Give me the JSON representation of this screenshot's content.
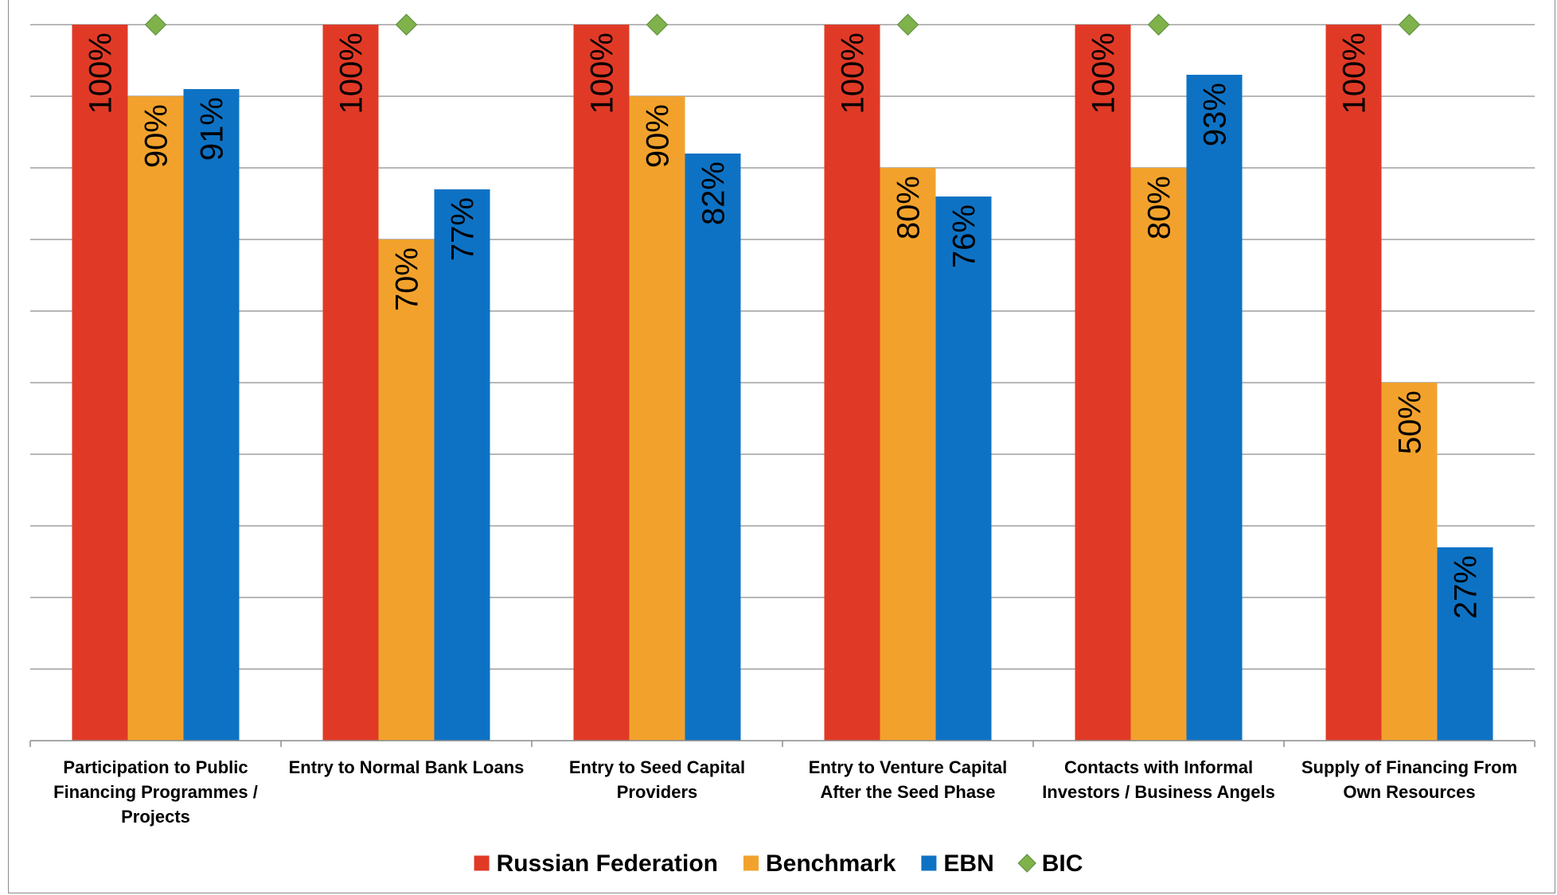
{
  "chart_data": {
    "type": "bar",
    "categories": [
      [
        "Participation to Public",
        "Financing Programmes /",
        "Projects"
      ],
      [
        "Entry to Normal Bank Loans"
      ],
      [
        "Entry to Seed Capital",
        "Providers"
      ],
      [
        "Entry to Venture Capital",
        "After the Seed Phase"
      ],
      [
        "Contacts with Informal",
        "Investors / Business Angels"
      ],
      [
        "Supply of Financing From",
        "Own Resources"
      ]
    ],
    "series": [
      {
        "name": "Russian Federation",
        "type": "bar",
        "color": "#e03a26",
        "values": [
          100,
          100,
          100,
          100,
          100,
          100
        ],
        "labels": [
          "100%",
          "100%",
          "100%",
          "100%",
          "100%",
          "100%"
        ]
      },
      {
        "name": "Benchmark",
        "type": "bar",
        "color": "#f2a22c",
        "values": [
          90,
          70,
          90,
          80,
          80,
          50
        ],
        "labels": [
          "90%",
          "70%",
          "90%",
          "80%",
          "80%",
          "50%"
        ]
      },
      {
        "name": "EBN",
        "type": "bar",
        "color": "#0e72c4",
        "values": [
          91,
          77,
          82,
          76,
          93,
          27
        ],
        "labels": [
          "91%",
          "77%",
          "82%",
          "76%",
          "93%",
          "27%"
        ]
      },
      {
        "name": "BIC",
        "type": "marker",
        "color": "#7fb24a",
        "values": [
          100,
          100,
          100,
          100,
          100,
          100
        ]
      }
    ],
    "ylim": [
      0,
      100
    ],
    "grid": true,
    "legend_position": "bottom",
    "title": "",
    "xlabel": "",
    "ylabel": ""
  }
}
